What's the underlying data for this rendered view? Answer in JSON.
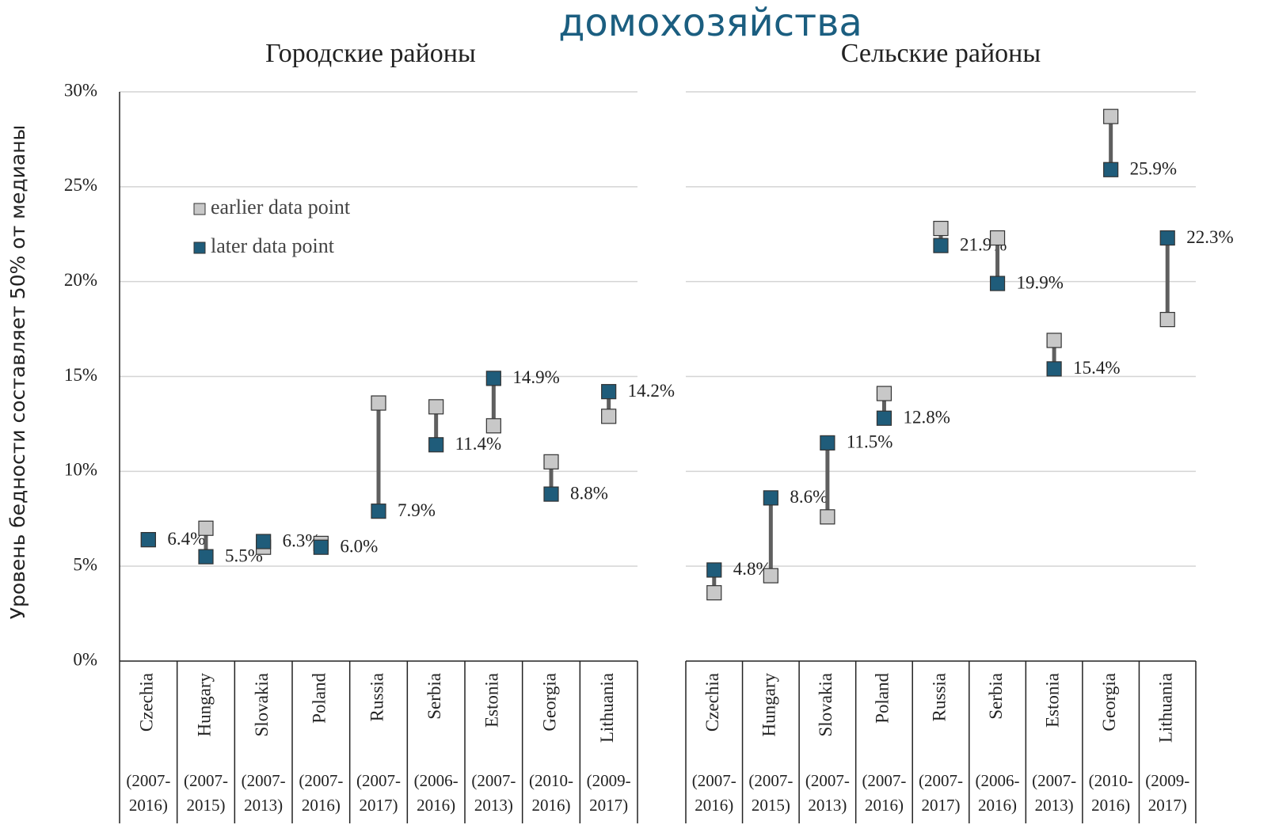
{
  "chart_data": [
    {
      "type": "dumbbell",
      "title": "домохозяйства",
      "subtitle": "Городские районы",
      "y_label": "Уровень бедности составляет 50% от медианы",
      "categories": [
        "Czechia",
        "Hungary",
        "Slovakia",
        "Poland",
        "Russia",
        "Serbia",
        "Estonia",
        "Georgia",
        "Lithuania"
      ],
      "periods": [
        [
          "(2007-",
          "2016)"
        ],
        [
          "(2007-",
          "2015)"
        ],
        [
          "(2007-",
          "2013)"
        ],
        [
          "(2007-",
          "2016)"
        ],
        [
          "(2007-",
          "2017)"
        ],
        [
          "(2006-",
          "2016)"
        ],
        [
          "(2007-",
          "2013)"
        ],
        [
          "(2010-",
          "2016)"
        ],
        [
          "(2009-",
          "2017)"
        ]
      ],
      "series": [
        {
          "name": "earlier data point",
          "color": "#c8c8c8",
          "values": [
            6.4,
            7.0,
            6.0,
            6.2,
            13.6,
            13.4,
            12.4,
            10.5,
            12.9
          ]
        },
        {
          "name": "later data point",
          "color": "#1f5c7a",
          "values": [
            6.4,
            5.5,
            6.3,
            6.0,
            7.9,
            11.4,
            14.9,
            8.8,
            14.2
          ],
          "value_labels": [
            "6.4%",
            "5.5%",
            "6.3%",
            "6.0%",
            "7.9%",
            "11.4%",
            "14.9%",
            "8.8%",
            "14.2%"
          ]
        }
      ],
      "ylim": [
        0,
        30
      ],
      "yticks": [
        {
          "value": 0,
          "label": "0%"
        },
        {
          "value": 5,
          "label": "5%"
        },
        {
          "value": 10,
          "label": "10%"
        },
        {
          "value": 15,
          "label": "15%"
        },
        {
          "value": 20,
          "label": "20%"
        },
        {
          "value": 25,
          "label": "25%"
        },
        {
          "value": 30,
          "label": "30%"
        }
      ],
      "grid": true,
      "legend": "upper-left"
    },
    {
      "type": "dumbbell",
      "subtitle": "Сельские районы",
      "categories": [
        "Czechia",
        "Hungary",
        "Slovakia",
        "Poland",
        "Russia",
        "Serbia",
        "Estonia",
        "Georgia",
        "Lithuania"
      ],
      "periods": [
        [
          "(2007-",
          "2016)"
        ],
        [
          "(2007-",
          "2015)"
        ],
        [
          "(2007-",
          "2013)"
        ],
        [
          "(2007-",
          "2016)"
        ],
        [
          "(2007-",
          "2017)"
        ],
        [
          "(2006-",
          "2016)"
        ],
        [
          "(2007-",
          "2013)"
        ],
        [
          "(2010-",
          "2016)"
        ],
        [
          "(2009-",
          "2017)"
        ]
      ],
      "series": [
        {
          "color": "#c8c8c8",
          "values": [
            3.6,
            4.5,
            7.6,
            14.1,
            22.8,
            22.3,
            16.9,
            28.7,
            18.0
          ]
        },
        {
          "color": "#1f5c7a",
          "values": [
            4.8,
            8.6,
            11.5,
            12.8,
            21.9,
            19.9,
            15.4,
            25.9,
            22.3
          ],
          "value_labels": [
            "4.8%",
            "8.6%",
            "11.5%",
            "12.8%",
            "21.9%",
            "19.9%",
            "15.4%",
            "25.9%",
            "22.3%"
          ]
        }
      ],
      "ylim": [
        0,
        30
      ],
      "yticks": [
        0,
        5,
        10,
        15,
        20,
        25,
        30
      ],
      "grid": true
    }
  ]
}
